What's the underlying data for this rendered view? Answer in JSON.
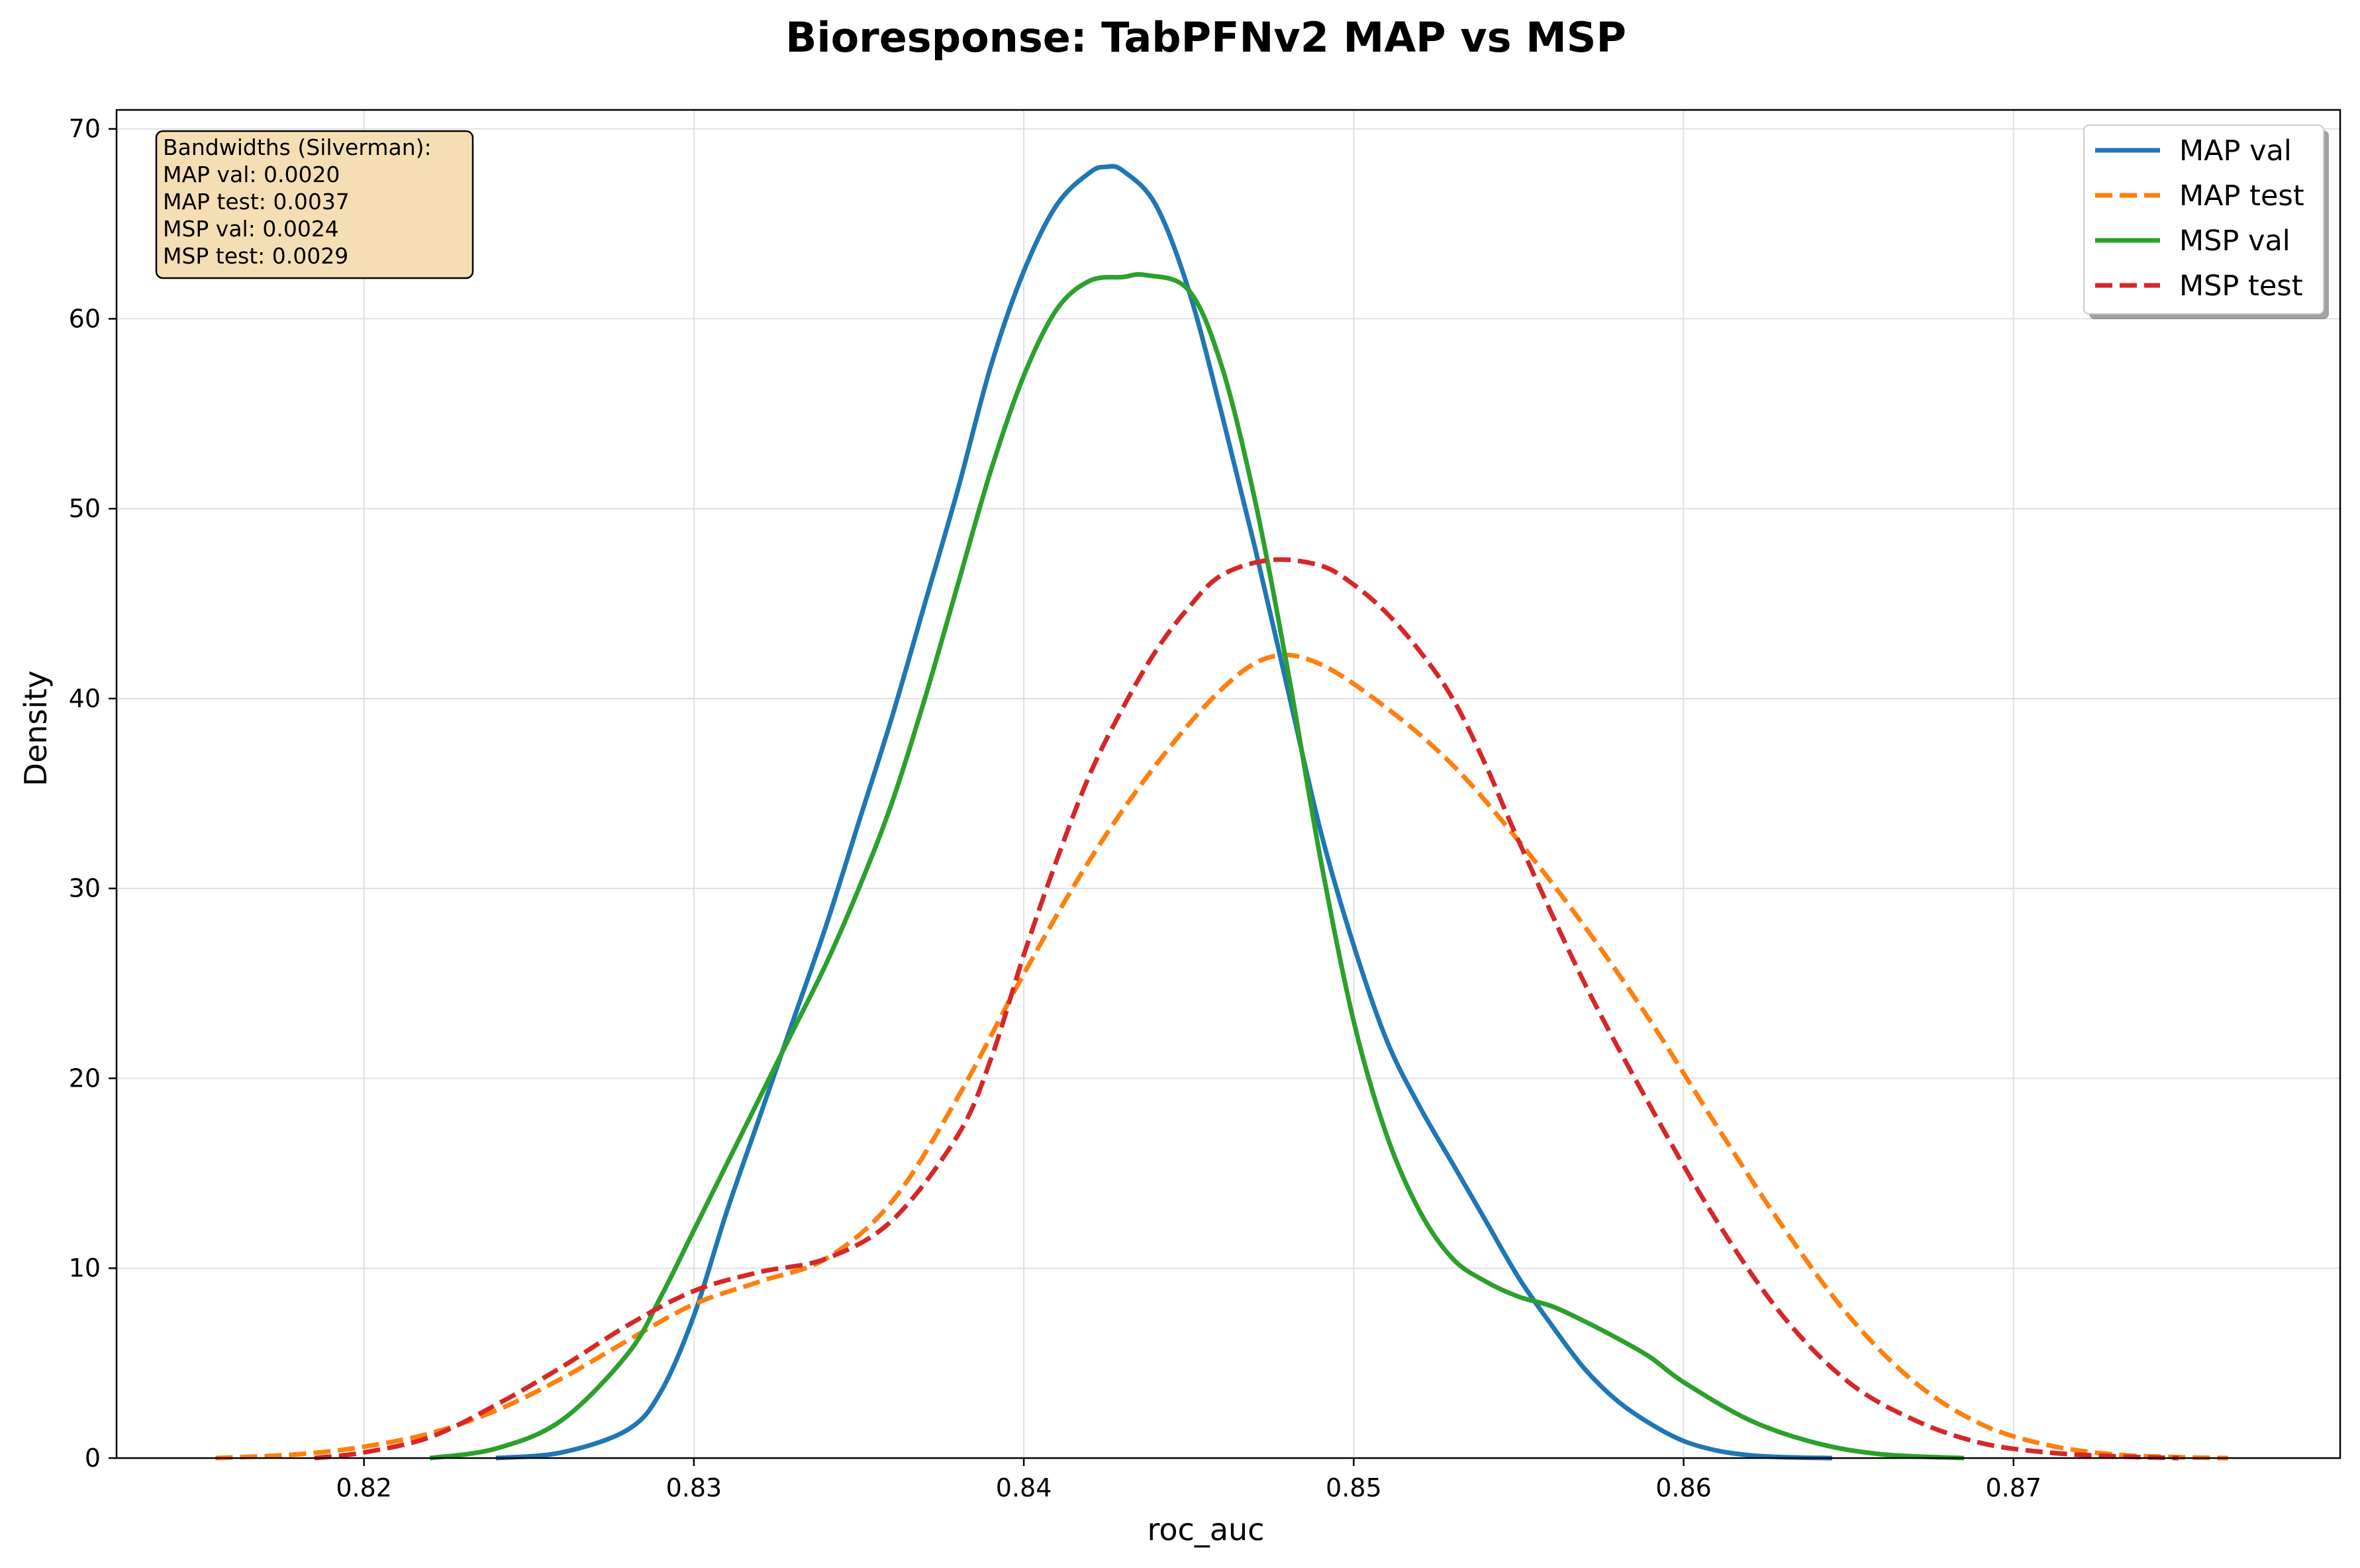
{
  "chart_data": {
    "type": "line",
    "title": "Bioresponse: TabPFNv2 MAP vs MSP",
    "xlabel": "roc_auc",
    "ylabel": "Density",
    "xlim": [
      0.8125,
      0.8799
    ],
    "ylim": [
      0,
      71
    ],
    "xticks": [
      0.82,
      0.83,
      0.84,
      0.85,
      0.86,
      0.87
    ],
    "xtick_labels": [
      "0.82",
      "0.83",
      "0.84",
      "0.85",
      "0.86",
      "0.87"
    ],
    "yticks": [
      0,
      10,
      20,
      30,
      40,
      50,
      60,
      70
    ],
    "ytick_labels": [
      "0",
      "10",
      "20",
      "30",
      "40",
      "50",
      "60",
      "70"
    ],
    "grid": true,
    "legend_position": "top-right",
    "annotation": {
      "lines": [
        "Bandwidths (Silverman):",
        "MAP val: 0.0020",
        "MAP test: 0.0037",
        "MSP val: 0.0024",
        "MSP test: 0.0029"
      ]
    },
    "series": [
      {
        "name": "MAP val",
        "color": "#1f77b4",
        "style": "solid",
        "x": [
          0.824,
          0.826,
          0.828,
          0.829,
          0.83,
          0.831,
          0.832,
          0.833,
          0.834,
          0.835,
          0.836,
          0.837,
          0.838,
          0.839,
          0.84,
          0.841,
          0.842,
          0.8425,
          0.843,
          0.844,
          0.845,
          0.846,
          0.847,
          0.848,
          0.849,
          0.85,
          0.851,
          0.852,
          0.853,
          0.854,
          0.855,
          0.856,
          0.857,
          0.858,
          0.859,
          0.86,
          0.861,
          0.862,
          0.863,
          0.8645
        ],
        "y": [
          0,
          0.3,
          1.5,
          3.5,
          7.5,
          13,
          18,
          23,
          28,
          33.5,
          39,
          45,
          51,
          57.5,
          62.5,
          66,
          67.7,
          68,
          67.8,
          66,
          61.5,
          55,
          48,
          40.5,
          33,
          27,
          22,
          18.5,
          15.5,
          12.5,
          9.5,
          7,
          4.7,
          3,
          1.8,
          0.9,
          0.4,
          0.15,
          0.05,
          0
        ]
      },
      {
        "name": "MAP test",
        "color": "#ff7f0e",
        "style": "dashed",
        "x": [
          0.8155,
          0.818,
          0.82,
          0.822,
          0.824,
          0.826,
          0.828,
          0.83,
          0.832,
          0.834,
          0.836,
          0.838,
          0.84,
          0.842,
          0.844,
          0.846,
          0.8475,
          0.849,
          0.851,
          0.853,
          0.855,
          0.857,
          0.859,
          0.861,
          0.863,
          0.865,
          0.867,
          0.869,
          0.871,
          0.873,
          0.875,
          0.8765
        ],
        "y": [
          0,
          0.2,
          0.6,
          1.3,
          2.5,
          4.2,
          6.2,
          8.1,
          9.3,
          10.5,
          13.5,
          19,
          25.5,
          31.5,
          36.5,
          40.5,
          42.2,
          41.8,
          39.5,
          36.5,
          32.5,
          28,
          23,
          17.5,
          12.2,
          7.5,
          4,
          1.8,
          0.7,
          0.2,
          0.05,
          0
        ]
      },
      {
        "name": "MSP val",
        "color": "#2ca02c",
        "style": "solid",
        "x": [
          0.822,
          0.824,
          0.826,
          0.828,
          0.829,
          0.83,
          0.831,
          0.832,
          0.833,
          0.834,
          0.835,
          0.836,
          0.837,
          0.838,
          0.839,
          0.84,
          0.841,
          0.842,
          0.843,
          0.8437,
          0.845,
          0.846,
          0.847,
          0.848,
          0.849,
          0.85,
          0.851,
          0.852,
          0.853,
          0.854,
          0.855,
          0.856,
          0.857,
          0.858,
          0.859,
          0.86,
          0.862,
          0.864,
          0.866,
          0.8685
        ],
        "y": [
          0,
          0.5,
          2,
          5.5,
          8.5,
          12,
          15.5,
          19,
          22.5,
          26,
          30,
          34.5,
          40,
          46,
          52,
          57,
          60.5,
          62,
          62.2,
          62.3,
          61.5,
          57.5,
          50.5,
          41.5,
          31.5,
          23,
          17,
          13,
          10.5,
          9.3,
          8.5,
          8,
          7.2,
          6.3,
          5.3,
          4,
          2,
          0.8,
          0.2,
          0
        ]
      },
      {
        "name": "MSP test",
        "color": "#d62728",
        "style": "dashed",
        "x": [
          0.8185,
          0.82,
          0.822,
          0.824,
          0.826,
          0.828,
          0.83,
          0.832,
          0.834,
          0.836,
          0.838,
          0.839,
          0.84,
          0.841,
          0.842,
          0.843,
          0.844,
          0.845,
          0.846,
          0.8475,
          0.849,
          0.85,
          0.851,
          0.852,
          0.853,
          0.854,
          0.855,
          0.857,
          0.859,
          0.861,
          0.863,
          0.865,
          0.867,
          0.869,
          0.871,
          0.873,
          0.875
        ],
        "y": [
          0,
          0.3,
          1.1,
          2.8,
          4.8,
          7,
          8.8,
          9.8,
          10.5,
          12.5,
          17,
          21,
          26.5,
          31.5,
          36,
          39.5,
          42.5,
          44.8,
          46.5,
          47.3,
          47,
          46,
          44.5,
          42.5,
          40,
          36.5,
          32.5,
          25,
          18.5,
          12.5,
          7.5,
          4,
          2,
          0.8,
          0.3,
          0.1,
          0
        ]
      }
    ]
  }
}
